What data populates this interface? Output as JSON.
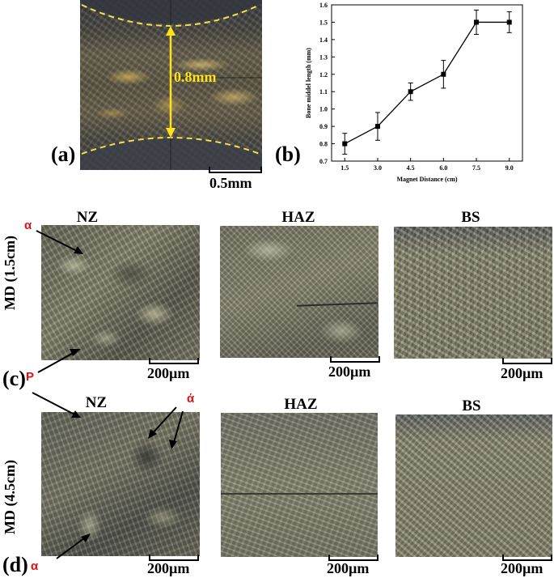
{
  "panel_a": {
    "letter": "(a)",
    "measure": "0.8mm",
    "scalebar": "0.5mm",
    "colors": {
      "dash": "#f2e04a",
      "arrow": "#ffe21a"
    }
  },
  "panel_b": {
    "letter": "(b)"
  },
  "chart_data": {
    "type": "line",
    "xlabel": "Magnet Distance (cm)",
    "ylabel": "Bone middel length (mm)",
    "x": [
      1.5,
      3.0,
      4.5,
      6.0,
      7.5,
      9.0
    ],
    "xticks": [
      "1.5",
      "3.0",
      "4.5",
      "6.0",
      "7.5",
      "9.0"
    ],
    "xlim": [
      0.9,
      9.6
    ],
    "ylim": [
      0.7,
      1.6
    ],
    "yticks": [
      "0.7",
      "0.8",
      "0.9",
      "1.0",
      "1.1",
      "1.2",
      "1.3",
      "1.4",
      "1.5",
      "1.6"
    ],
    "series": [
      {
        "values": [
          0.8,
          0.9,
          1.1,
          1.2,
          1.5,
          1.5
        ],
        "errors": [
          0.06,
          0.08,
          0.05,
          0.08,
          0.07,
          0.06
        ],
        "marker": "square",
        "color": "#000000"
      }
    ],
    "grid": false
  },
  "panel_c": {
    "letter": "(c)",
    "row_label": "MD (1.5cm)",
    "headers": [
      "NZ",
      "HAZ",
      "BS"
    ],
    "scalebar": "200µm",
    "annotations": {
      "alpha": "α",
      "p": "P"
    }
  },
  "panel_d": {
    "letter": "(d)",
    "row_label": "MD (4.5cm)",
    "headers": [
      "NZ",
      "HAZ",
      "BS"
    ],
    "scalebar": "200µm",
    "annotations": {
      "alpha_prime": "ά",
      "alpha": "α"
    }
  }
}
